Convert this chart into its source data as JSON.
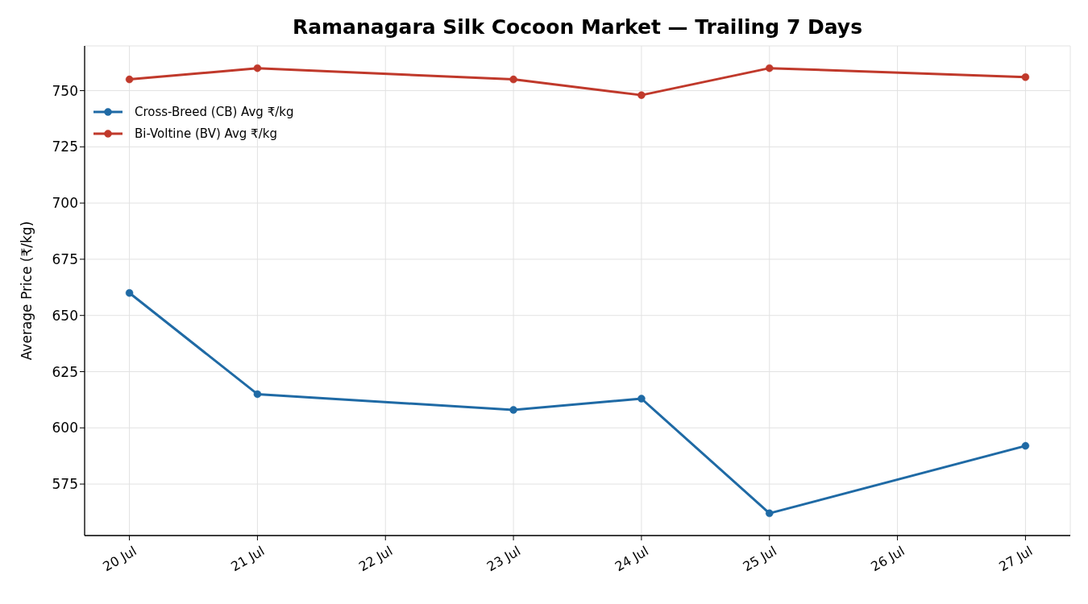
{
  "chart_data": {
    "type": "line",
    "title": "Ramanagara Silk Cocoon Market — Trailing 7 Days",
    "ylabel": "Average Price (₹/kg)",
    "x": [
      "--07-20",
      "--07-21",
      "--07-23",
      "--07-24",
      "--07-25",
      "--07-27"
    ],
    "series": [
      {
        "name": "Cross-Breed (CB) Avg ₹/kg",
        "color": "#1f6aa5",
        "values": [
          660,
          615,
          608,
          613,
          562,
          592
        ]
      },
      {
        "name": "Bi-Voltine (BV) Avg ₹/kg",
        "color": "#c0392b",
        "values": [
          755,
          760,
          755,
          748,
          760,
          756
        ]
      }
    ],
    "xlim": [
      "--07-19T15:36",
      "--07-27T08:24"
    ],
    "ylim": [
      552.1,
      769.9
    ],
    "xticks": [
      {
        "value": "--07-20",
        "label": "20 Jul"
      },
      {
        "value": "--07-21",
        "label": "21 Jul"
      },
      {
        "value": "--07-22",
        "label": "22 Jul"
      },
      {
        "value": "--07-23",
        "label": "23 Jul"
      },
      {
        "value": "--07-24",
        "label": "24 Jul"
      },
      {
        "value": "--07-25",
        "label": "25 Jul"
      },
      {
        "value": "--07-26",
        "label": "26 Jul"
      },
      {
        "value": "--07-27",
        "label": "27 Jul"
      }
    ],
    "yticks": [
      575,
      600,
      625,
      650,
      675,
      700,
      725,
      750
    ],
    "grid": true,
    "legend": "top left",
    "marker": "circle",
    "line_style": "solid"
  }
}
